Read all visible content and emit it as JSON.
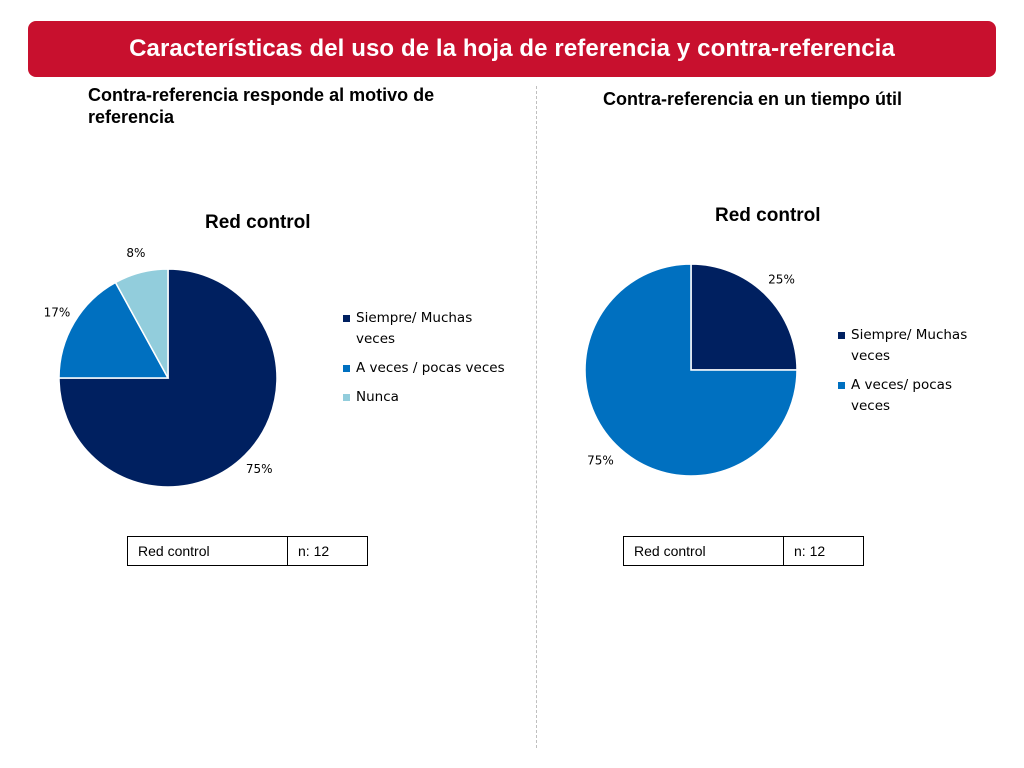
{
  "header": {
    "title": "Características del uso de la hoja de referencia y contra-referencia"
  },
  "panels": [
    {
      "subtitle": "Contra-referencia responde al motivo de referencia",
      "table": {
        "label": "Red control",
        "n": "n: 12"
      }
    },
    {
      "subtitle": "Contra-referencia en un tiempo útil",
      "table": {
        "label": "Red control",
        "n": "n: 12"
      }
    }
  ],
  "chart_data": [
    {
      "type": "pie",
      "title": "Red control",
      "categories": [
        "Siempre/ Muchas veces",
        "A veces / pocas veces",
        "Nunca"
      ],
      "values": [
        75,
        17,
        8
      ],
      "value_labels": [
        "75%",
        "17%",
        "8%"
      ],
      "colors": [
        "#002060",
        "#0070c0",
        "#92cddc"
      ],
      "legend": "right"
    },
    {
      "type": "pie",
      "title": "Red control",
      "categories": [
        "Siempre/ Muchas veces",
        "A veces/ pocas veces"
      ],
      "values": [
        25,
        75
      ],
      "value_labels": [
        "25%",
        "75%"
      ],
      "colors": [
        "#002060",
        "#0070c0"
      ],
      "legend": "right"
    }
  ]
}
